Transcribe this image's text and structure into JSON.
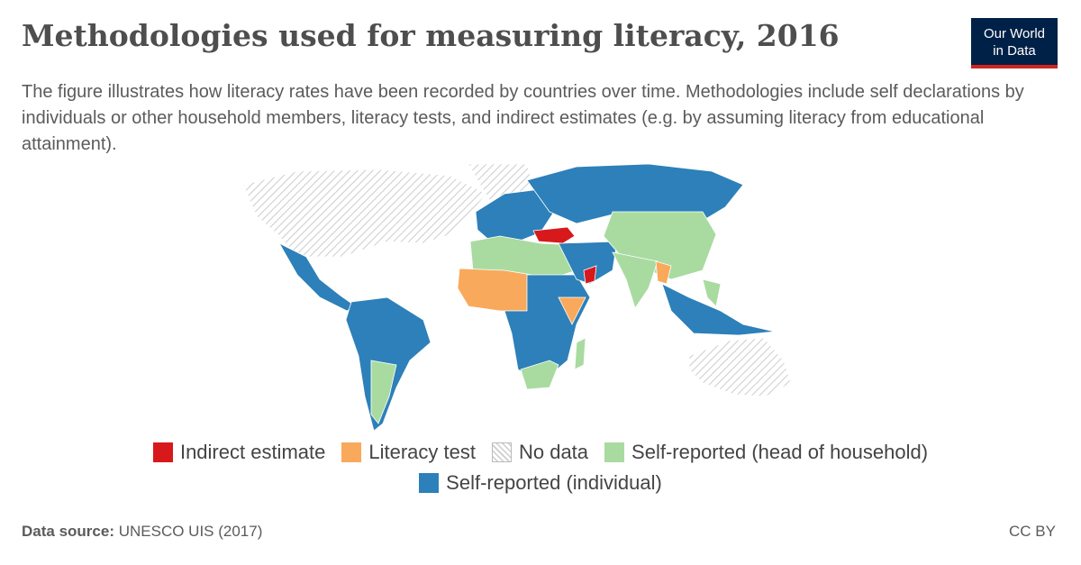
{
  "header": {
    "title": "Methodologies used for measuring literacy, 2016",
    "subtitle": "The figure illustrates how literacy rates have been recorded by countries over time. Methodologies include self declarations by individuals or other household members, literacy tests, and indirect estimates (e.g. by assuming literacy from educational attainment).",
    "logo": [
      "Our World",
      "in Data"
    ]
  },
  "legend": {
    "items": [
      {
        "label": "Indirect estimate",
        "color": "#d7191c"
      },
      {
        "label": "Literacy test",
        "color": "#f9a95b"
      },
      {
        "label": "No data",
        "pattern": "hatch"
      },
      {
        "label": "Self-reported (head of household)",
        "color": "#a9dba1"
      },
      {
        "label": "Self-reported (individual)",
        "color": "#2d80b9"
      }
    ]
  },
  "footer": {
    "source_label": "Data source:",
    "source": "UNESCO UIS (2017)",
    "license": "CC BY"
  }
}
